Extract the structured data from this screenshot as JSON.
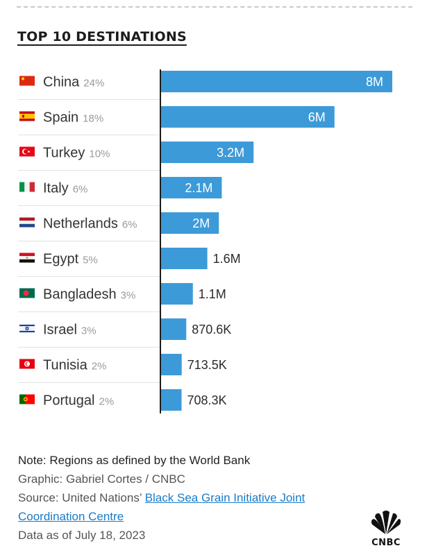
{
  "title": "TOP 10 DESTINATIONS",
  "chart_data": {
    "type": "bar",
    "orientation": "horizontal",
    "title": "TOP 10 DESTINATIONS",
    "categories": [
      "China",
      "Spain",
      "Turkey",
      "Italy",
      "Netherlands",
      "Egypt",
      "Bangladesh",
      "Israel",
      "Tunisia",
      "Portugal"
    ],
    "shares": [
      "24%",
      "18%",
      "10%",
      "6%",
      "6%",
      "5%",
      "3%",
      "3%",
      "2%",
      "2%"
    ],
    "values": [
      8000000,
      6000000,
      3200000,
      2100000,
      2000000,
      1600000,
      1100000,
      870600,
      713500,
      708300
    ],
    "value_labels": [
      "8M",
      "6M",
      "3.2M",
      "2.1M",
      "2M",
      "1.6M",
      "1.1M",
      "870.6K",
      "713.5K",
      "708.3K"
    ],
    "xlim": [
      0,
      8000000
    ],
    "bar_color": "#3d9ad8",
    "grid": false,
    "flag_icons": [
      "china-flag-icon",
      "spain-flag-icon",
      "turkey-flag-icon",
      "italy-flag-icon",
      "netherlands-flag-icon",
      "egypt-flag-icon",
      "bangladesh-flag-icon",
      "israel-flag-icon",
      "tunisia-flag-icon",
      "portugal-flag-icon"
    ]
  },
  "footer": {
    "note": "Note: Regions as defined by the World Bank",
    "graphic": "Graphic: Gabriel Cortes / CNBC",
    "source_prefix": "Source: United Nations’ ",
    "source_link": "Black Sea Grain Initiative Joint Coordination Centre",
    "date": "Data as of July 18, 2023"
  },
  "logo": {
    "icon": "cnbc-peacock-icon",
    "text": "CNBC"
  }
}
